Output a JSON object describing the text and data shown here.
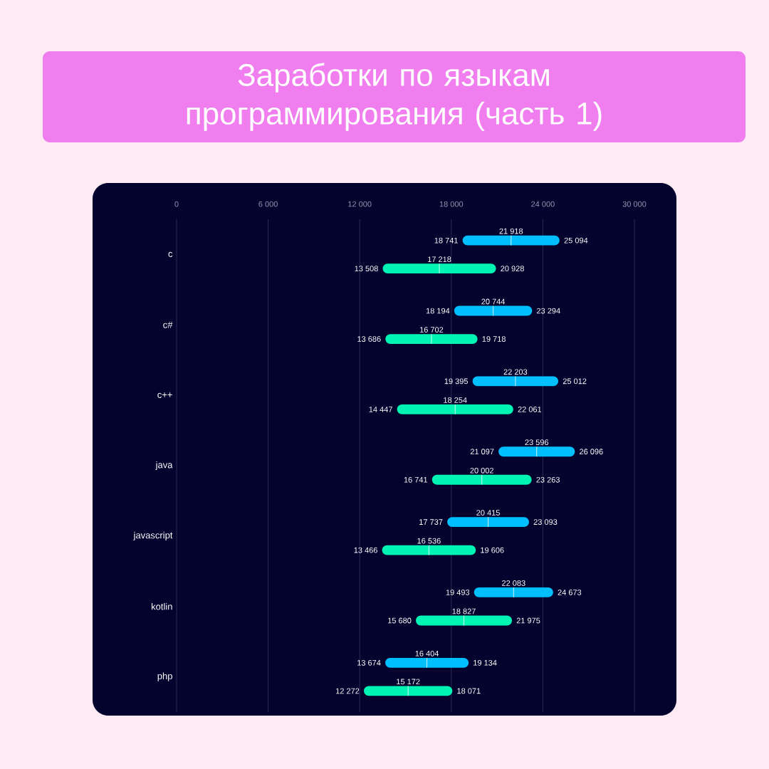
{
  "chart_data": {
    "type": "box",
    "orientation": "horizontal",
    "title": "Заработки по языкам программирования (часть 1)",
    "categories": [
      "c",
      "c#",
      "c++",
      "java",
      "javascript",
      "kotlin",
      "php"
    ],
    "series": [
      {
        "color": "#00bfff",
        "boxes": [
          {
            "low": 18741,
            "q1": 18741,
            "median": 21918,
            "q3": 25094,
            "high": 25094
          },
          {
            "low": 18194,
            "q1": 18194,
            "median": 20744,
            "q3": 23294,
            "high": 23294
          },
          {
            "low": 19395,
            "q1": 19395,
            "median": 22203,
            "q3": 25012,
            "high": 25012
          },
          {
            "low": 21097,
            "q1": 21097,
            "median": 23596,
            "q3": 26096,
            "high": 26096
          },
          {
            "low": 17737,
            "q1": 17737,
            "median": 20415,
            "q3": 23093,
            "high": 23093
          },
          {
            "low": 19493,
            "q1": 19493,
            "median": 22083,
            "q3": 24673,
            "high": 24673
          },
          {
            "low": 13674,
            "q1": 13674,
            "median": 16404,
            "q3": 19134,
            "high": 19134
          }
        ]
      },
      {
        "color": "#00f5b4",
        "boxes": [
          {
            "low": 13508,
            "q1": 13508,
            "median": 17218,
            "q3": 20928,
            "high": 20928
          },
          {
            "low": 13686,
            "q1": 13686,
            "median": 16702,
            "q3": 19718,
            "high": 19718
          },
          {
            "low": 14447,
            "q1": 14447,
            "median": 18254,
            "q3": 22061,
            "high": 22061
          },
          {
            "low": 16741,
            "q1": 16741,
            "median": 20002,
            "q3": 23263,
            "high": 23263
          },
          {
            "low": 13466,
            "q1": 13466,
            "median": 16536,
            "q3": 19606,
            "high": 19606
          },
          {
            "low": 15680,
            "q1": 15680,
            "median": 18827,
            "q3": 21975,
            "high": 21975
          },
          {
            "low": 12272,
            "q1": 12272,
            "median": 15172,
            "q3": 18071,
            "high": 18071
          }
        ]
      }
    ],
    "xlim": [
      0,
      30000
    ],
    "xticks": [
      0,
      {
        "value": 6000,
        "label": "6 000"
      },
      {
        "value": 12000,
        "label": "12 000"
      },
      {
        "value": 18000,
        "label": "18 000"
      },
      {
        "value": 24000,
        "label": "24 000"
      },
      {
        "value": 30000,
        "label": "30 000"
      }
    ],
    "grid": "x",
    "annotations": [
      "18 741",
      "21 918",
      "25 094",
      "13 508",
      "17 218",
      "20 928",
      "18 194",
      "20 744",
      "23 294",
      "13 686",
      "16 702",
      "19 718",
      "19 395",
      "22 203",
      "25 012",
      "14 447",
      "18 254",
      "22 061",
      "21 097",
      "23 596",
      "26 096",
      "16 741",
      "20 002",
      "23 263",
      "17 737",
      "20 415",
      "23 093",
      "13 466",
      "16 536",
      "19 606",
      "19 493",
      "22 083",
      "24 673",
      "15 680",
      "18 827",
      "21 975",
      "13 674",
      "16 404",
      "19 134",
      "12 272",
      "15 172",
      "18 071"
    ]
  }
}
